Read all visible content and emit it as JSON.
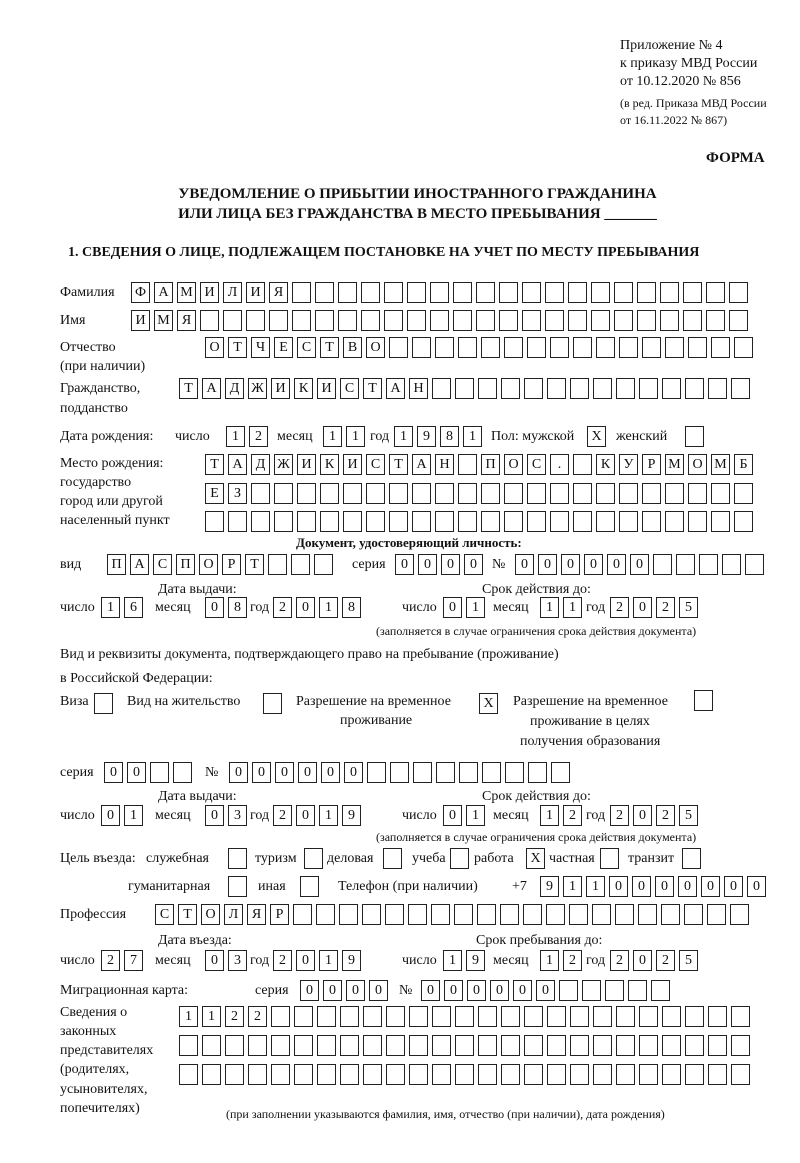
{
  "header": {
    "appendix": [
      "Приложение № 4",
      "к приказу МВД России",
      "от 10.12.2020 № 856"
    ],
    "revision": [
      "(в ред. Приказа МВД России",
      "от 16.11.2022 № 867)"
    ],
    "form_label": "ФОРМА",
    "title_line1": "УВЕДОМЛЕНИЕ О ПРИБЫТИИ ИНОСТРАННОГО ГРАЖДАНИНА",
    "title_line2": "ИЛИ ЛИЦА БЕЗ ГРАЖДАНСТВА В МЕСТО ПРЕБЫВАНИЯ _______",
    "section1": "1. СВЕДЕНИЯ О ЛИЦЕ, ПОДЛЕЖАЩЕМ ПОСТАНОВКЕ НА УЧЕТ ПО МЕСТУ ПРЕБЫВАНИЯ"
  },
  "person": {
    "surname_label": "Фамилия",
    "surname": "ФАМИЛИЯ",
    "name_label": "Имя",
    "name": "ИМЯ",
    "patronymic_label": [
      "Отчество",
      "(при наличии)"
    ],
    "patronymic": "ОТЧЕСТВО",
    "citizenship_label": [
      "Гражданство,",
      "подданство"
    ],
    "citizenship": "ТАДЖИКИСТАН",
    "birth_label": "Дата рождения:",
    "day_label": "число",
    "month_label": "месяц",
    "year_label": "год",
    "birth_day": "12",
    "birth_month": "11",
    "birth_year": "1981",
    "sex_label": "Пол: мужской",
    "female_label": "женский",
    "male": "X",
    "female": "",
    "birthplace_label": [
      "Место рождения:",
      "государство",
      "город или другой",
      "населенный пункт"
    ],
    "birthplace_line1": "ТАДЖИКИСТАН ПОС. КУРМОМБ",
    "birthplace_line2": "ЕЗ",
    "birthplace_line3": ""
  },
  "id_document": {
    "heading": "Документ, удостоверяющий личность:",
    "kind_label": "вид",
    "kind": "ПАСПОРТ",
    "series_label": "серия",
    "series": "0000",
    "number_label": "№",
    "number": "000000",
    "issue_label": "Дата выдачи:",
    "valid_label": "Срок действия до:",
    "issue_day": "16",
    "issue_month": "08",
    "issue_year": "2018",
    "valid_day": "01",
    "valid_month": "11",
    "valid_year": "2025",
    "note": "(заполняется в случае ограничения срока действия документа)"
  },
  "stay_document": {
    "heading1": "Вид и реквизиты документа, подтверждающего право на пребывание (проживание)",
    "heading2": "в Российской Федерации:",
    "visa_label": "Виза",
    "visa": "",
    "residence_label": "Вид на жительство",
    "residence": "",
    "temp_label": [
      "Разрешение на временное",
      "проживание"
    ],
    "temp": "X",
    "temp_edu_label": [
      "Разрешение на временное",
      "проживание в целях",
      "получения образования"
    ],
    "temp_edu": "",
    "series_label": "серия",
    "series": "00",
    "number_label": "№",
    "number": "000000",
    "issue_label": "Дата выдачи:",
    "valid_label": "Срок действия до:",
    "issue_day": "01",
    "issue_month": "03",
    "issue_year": "2019",
    "valid_day": "01",
    "valid_month": "12",
    "valid_year": "2025",
    "note": "(заполняется в случае ограничения срока действия документа)"
  },
  "purpose": {
    "label": "Цель въезда:",
    "options": [
      {
        "label": "служебная",
        "value": ""
      },
      {
        "label": "туризм",
        "value": ""
      },
      {
        "label": "деловая",
        "value": ""
      },
      {
        "label": "учеба",
        "value": ""
      },
      {
        "label": "работа",
        "value": "X"
      },
      {
        "label": "частная",
        "value": ""
      },
      {
        "label": "транзит",
        "value": ""
      },
      {
        "label": "гуманитарная",
        "value": ""
      },
      {
        "label": "иная",
        "value": ""
      }
    ],
    "phone_label": "Телефон (при наличии)",
    "phone_prefix": "+7",
    "phone": "9110000000"
  },
  "profession": {
    "label": "Профессия",
    "value": "СТОЛЯР"
  },
  "entry": {
    "entry_label": "Дата въезда:",
    "stay_label": "Срок пребывания до:",
    "entry_day": "27",
    "entry_month": "03",
    "entry_year": "2019",
    "stay_day": "19",
    "stay_month": "12",
    "stay_year": "2025"
  },
  "migration_card": {
    "label": "Миграционная карта:",
    "series_label": "серия",
    "series": "0000",
    "number_label": "№",
    "number": "000000"
  },
  "representatives": {
    "label": [
      "Сведения о",
      "законных",
      "представителях",
      "(родителях,",
      "усыновителях,",
      "попечителях)"
    ],
    "line1": "1122",
    "line2": "",
    "line3": "",
    "note": "(при заполнении указываются фамилия, имя, отчество (при наличии), дата рождения)"
  }
}
